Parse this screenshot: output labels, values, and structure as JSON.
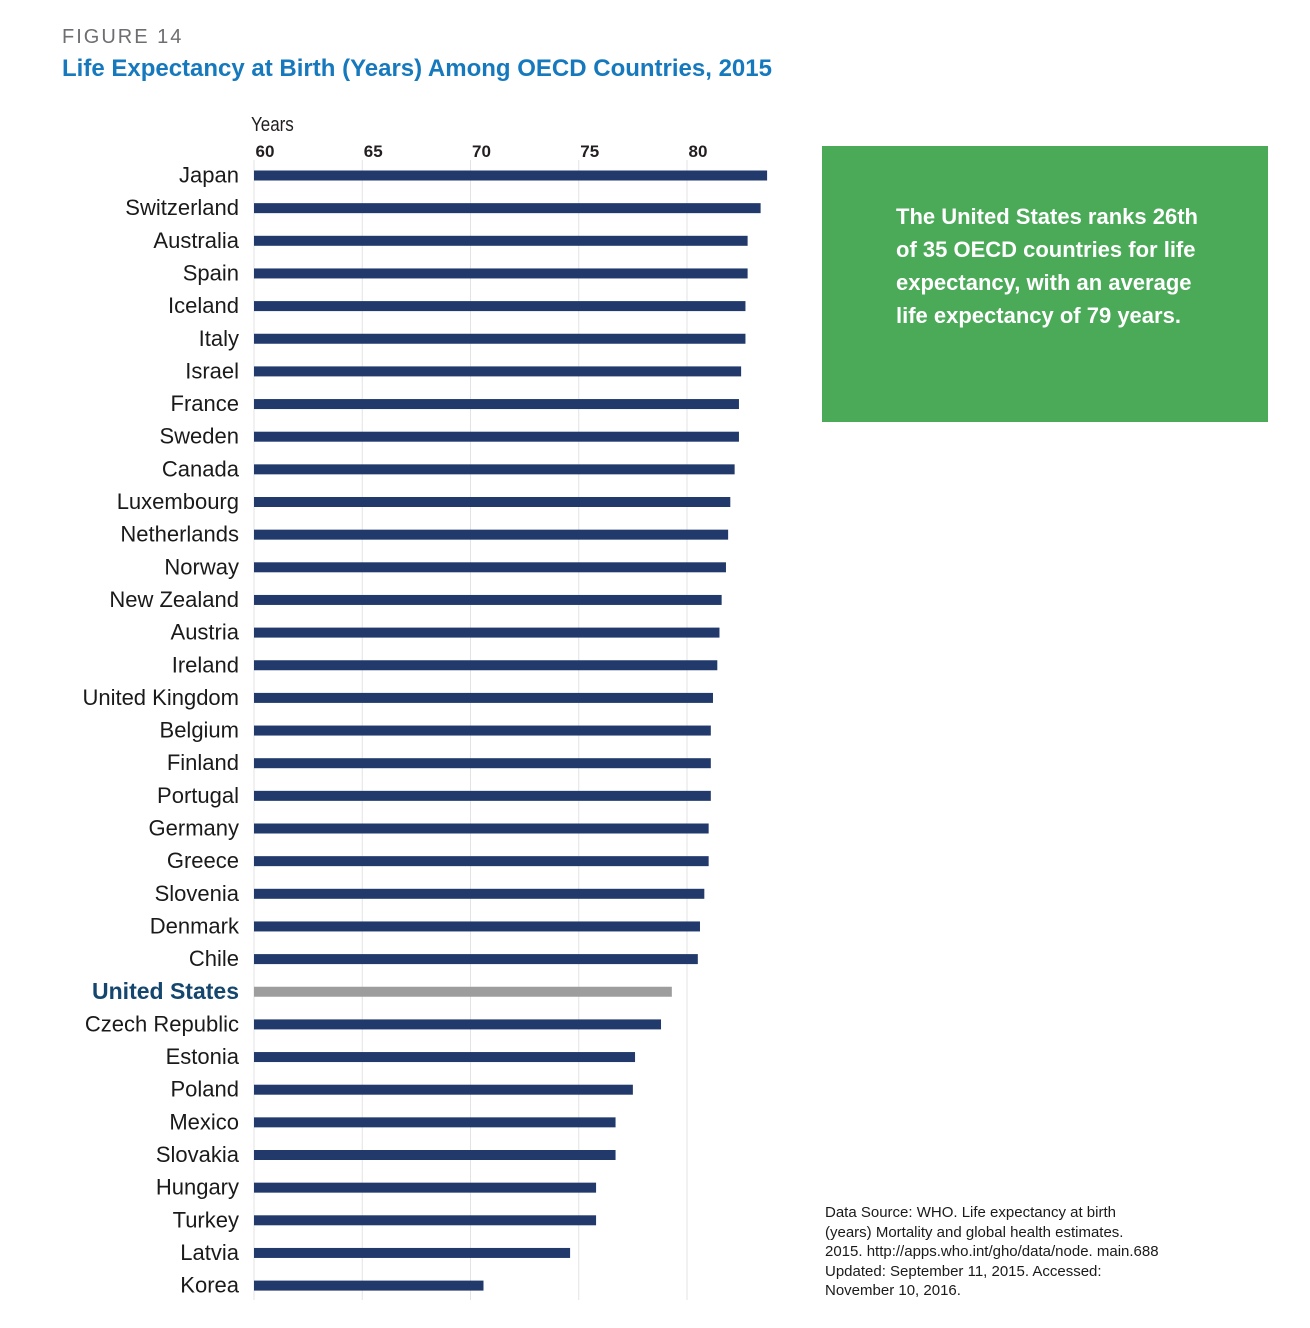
{
  "figure": {
    "label": "FIGURE 14",
    "title": "Life Expectancy at Birth (Years) Among OECD Countries, 2015"
  },
  "callout": {
    "text": "The United States ranks 26th of 35 OECD countries for life expectancy, with an average life expectancy of 79 years."
  },
  "source": {
    "text": "Data Source: WHO. Life expectancy at birth (years) Mortality and global health estimates. 2015. http://apps.who.int/gho/data/node. main.688 Updated: September 11, 2015. Accessed: November 10, 2016."
  },
  "colors": {
    "bar": "#213a6b",
    "highlight_bar": "#9d9d9d",
    "highlight_label": "#14466e",
    "gridline": "#e3e3e3"
  },
  "chart_data": {
    "type": "bar",
    "orientation": "horizontal",
    "title": "Life Expectancy at Birth (Years) Among OECD Countries, 2015",
    "xlabel": "Years",
    "ylabel": "",
    "xlim": [
      60,
      84
    ],
    "ticks": [
      60,
      65,
      70,
      75,
      80
    ],
    "tick_labels": [
      "60",
      "65",
      "70",
      "75",
      "80"
    ],
    "grid": true,
    "highlight": "United States",
    "categories": [
      "Japan",
      "Switzerland",
      "Australia",
      "Spain",
      "Iceland",
      "Italy",
      "Israel",
      "France",
      "Sweden",
      "Canada",
      "Luxembourg",
      "Netherlands",
      "Norway",
      "New Zealand",
      "Austria",
      "Ireland",
      "United Kingdom",
      "Belgium",
      "Finland",
      "Portugal",
      "Germany",
      "Greece",
      "Slovenia",
      "Denmark",
      "Chile",
      "United States",
      "Czech Republic",
      "Estonia",
      "Poland",
      "Mexico",
      "Slovakia",
      "Hungary",
      "Turkey",
      "Latvia",
      "Korea"
    ],
    "values": [
      83.7,
      83.4,
      82.8,
      82.8,
      82.7,
      82.7,
      82.5,
      82.4,
      82.4,
      82.2,
      82.0,
      81.9,
      81.8,
      81.6,
      81.5,
      81.4,
      81.2,
      81.1,
      81.1,
      81.1,
      81.0,
      81.0,
      80.8,
      80.6,
      80.5,
      79.3,
      78.8,
      77.6,
      77.5,
      76.7,
      76.7,
      75.8,
      75.8,
      74.6,
      70.6
    ]
  }
}
